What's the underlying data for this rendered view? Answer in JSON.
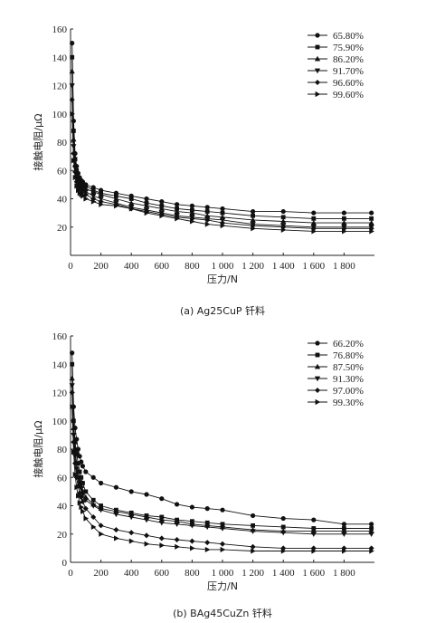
{
  "chart_data": [
    {
      "type": "line",
      "caption": "(a) Ag25CuP 钎料",
      "xlabel": "压力/N",
      "ylabel": "接触电阻/μΩ",
      "xlim": [
        0,
        2000
      ],
      "ylim": [
        0,
        160
      ],
      "x_ticks": [
        0,
        200,
        400,
        600,
        800,
        1000,
        1200,
        1400,
        1600,
        1800
      ],
      "x_tick_labels": [
        "0",
        "200",
        "400",
        "600",
        "800",
        "1 000",
        "1 200",
        "1 400",
        "1 600",
        "1 800"
      ],
      "y_ticks": [
        20,
        40,
        60,
        80,
        100,
        120,
        140,
        160
      ],
      "y_tick_labels": [
        "20",
        "40",
        "60",
        "80",
        "100",
        "120",
        "140",
        "160"
      ],
      "legend_position": "top-right",
      "x": [
        10,
        20,
        30,
        40,
        50,
        60,
        70,
        80,
        100,
        150,
        200,
        300,
        400,
        500,
        600,
        700,
        800,
        900,
        1000,
        1200,
        1400,
        1600,
        1800,
        1980
      ],
      "series": [
        {
          "name": "65.80%",
          "marker": "circle",
          "values": [
            150,
            95,
            72,
            63,
            58,
            55,
            53,
            52,
            50,
            48,
            46,
            44,
            42,
            40,
            38,
            36,
            35,
            34,
            33,
            31,
            31,
            30,
            30,
            30
          ]
        },
        {
          "name": "75.90%",
          "marker": "square",
          "values": [
            140,
            88,
            68,
            60,
            55,
            52,
            51,
            50,
            49,
            46,
            44,
            42,
            40,
            37,
            35,
            33,
            32,
            31,
            30,
            28,
            27,
            26,
            26,
            26
          ]
        },
        {
          "name": "86.20%",
          "marker": "triangle-up",
          "values": [
            130,
            82,
            64,
            57,
            53,
            51,
            50,
            49,
            47,
            45,
            43,
            40,
            37,
            35,
            33,
            31,
            30,
            28,
            27,
            25,
            24,
            23,
            23,
            23
          ]
        },
        {
          "name": "91.70%",
          "marker": "triangle-down",
          "values": [
            120,
            77,
            62,
            55,
            51,
            49,
            48,
            47,
            45,
            42,
            40,
            37,
            34,
            32,
            30,
            28,
            27,
            26,
            25,
            22,
            21,
            20,
            20,
            20
          ]
        },
        {
          "name": "96.60%",
          "marker": "diamond",
          "values": [
            110,
            72,
            59,
            52,
            49,
            47,
            46,
            45,
            43,
            40,
            38,
            36,
            33,
            31,
            29,
            27,
            26,
            25,
            23,
            21,
            20,
            19,
            19,
            19
          ]
        },
        {
          "name": "99.60%",
          "marker": "triangle-right",
          "values": [
            100,
            67,
            55,
            49,
            46,
            44,
            43,
            42,
            40,
            38,
            36,
            35,
            33,
            30,
            28,
            26,
            24,
            22,
            21,
            19,
            18,
            17,
            17,
            17
          ]
        }
      ]
    },
    {
      "type": "line",
      "caption": "(b) BAg45CuZn 钎料",
      "xlabel": "压力/N",
      "ylabel": "接触电阻/μΩ",
      "xlim": [
        0,
        2000
      ],
      "ylim": [
        0,
        160
      ],
      "x_ticks": [
        0,
        200,
        400,
        600,
        800,
        1000,
        1200,
        1400,
        1600,
        1800
      ],
      "x_tick_labels": [
        "0",
        "200",
        "400",
        "600",
        "800",
        "1 000",
        "1 200",
        "1 400",
        "1 600",
        "1 800"
      ],
      "y_ticks": [
        0,
        20,
        40,
        60,
        80,
        100,
        120,
        140,
        160
      ],
      "y_tick_labels": [
        "0",
        "20",
        "40",
        "60",
        "80",
        "100",
        "120",
        "140",
        "160"
      ],
      "legend_position": "top-right",
      "x": [
        10,
        20,
        30,
        40,
        50,
        60,
        70,
        80,
        100,
        150,
        200,
        300,
        400,
        500,
        600,
        700,
        800,
        900,
        1000,
        1200,
        1400,
        1600,
        1800,
        1980
      ],
      "series": [
        {
          "name": "66.20%",
          "marker": "circle",
          "values": [
            148,
            110,
            95,
            87,
            80,
            75,
            71,
            68,
            64,
            60,
            56,
            53,
            50,
            48,
            45,
            41,
            39,
            38,
            37,
            33,
            31,
            30,
            27,
            27
          ]
        },
        {
          "name": "76.80%",
          "marker": "square",
          "values": [
            140,
            100,
            85,
            77,
            70,
            64,
            60,
            56,
            50,
            44,
            40,
            37,
            35,
            33,
            32,
            30,
            29,
            28,
            27,
            26,
            25,
            24,
            24,
            24
          ]
        },
        {
          "name": "87.50%",
          "marker": "triangle-up",
          "values": [
            130,
            95,
            80,
            70,
            64,
            58,
            54,
            50,
            46,
            41,
            38,
            36,
            34,
            32,
            30,
            29,
            27,
            26,
            25,
            23,
            22,
            22,
            22,
            22
          ]
        },
        {
          "name": "91.30%",
          "marker": "triangle-down",
          "values": [
            125,
            90,
            75,
            66,
            60,
            55,
            52,
            48,
            44,
            40,
            37,
            34,
            32,
            30,
            28,
            27,
            26,
            25,
            24,
            22,
            21,
            20,
            20,
            20
          ]
        },
        {
          "name": "97.00%",
          "marker": "diamond",
          "values": [
            120,
            85,
            70,
            60,
            54,
            49,
            46,
            43,
            38,
            32,
            26,
            23,
            21,
            19,
            17,
            16,
            15,
            14,
            13,
            11,
            10,
            10,
            10,
            10
          ]
        },
        {
          "name": "99.30%",
          "marker": "triangle-right",
          "values": [
            110,
            78,
            62,
            53,
            47,
            42,
            39,
            36,
            31,
            25,
            20,
            17,
            15,
            13,
            12,
            11,
            10,
            9,
            9,
            8,
            8,
            8,
            8,
            8
          ]
        }
      ]
    }
  ]
}
